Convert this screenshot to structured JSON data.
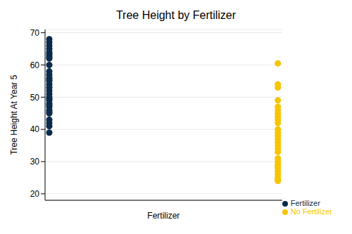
{
  "chart_data": {
    "type": "scatter",
    "title": "Tree Height by Fertilizer",
    "xlabel": "Fertilizer",
    "ylabel": "Tree Height At Year 5",
    "ylim": [
      18,
      71
    ],
    "yticks": [
      20,
      30,
      40,
      50,
      60,
      70
    ],
    "grid": true,
    "legend": "lower right",
    "tick_labels": "y",
    "series": [
      {
        "name": "Fertilizer",
        "color": "#0b2b4c",
        "values": [
          68,
          67,
          66,
          65,
          64,
          63.5,
          63,
          62.5,
          62,
          60,
          58,
          57,
          56,
          55.5,
          55,
          54,
          53,
          52,
          51,
          50,
          49.5,
          49,
          48,
          47.5,
          47,
          46,
          45.5,
          45,
          43,
          42,
          41,
          39
        ]
      },
      {
        "name": "No Fertilizer",
        "color": "#f7c500",
        "values": [
          60.5,
          54,
          53,
          49,
          47,
          46,
          45,
          44,
          43,
          42,
          40,
          39,
          38,
          37,
          36,
          35,
          34,
          33,
          31,
          30,
          29,
          28.5,
          28,
          27,
          26,
          25,
          24.5,
          24
        ]
      }
    ]
  }
}
